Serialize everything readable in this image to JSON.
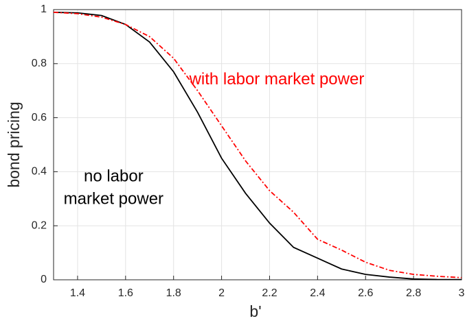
{
  "chart_data": {
    "type": "line",
    "xlabel": "b'",
    "ylabel": "bond pricing",
    "x": [
      1.3,
      1.4,
      1.5,
      1.6,
      1.7,
      1.8,
      1.9,
      2.0,
      2.1,
      2.2,
      2.3,
      2.4,
      2.5,
      2.6,
      2.7,
      2.8,
      2.9,
      3.0
    ],
    "series": [
      {
        "color": "#000000",
        "dash": "solid",
        "values": [
          0.99,
          0.988,
          0.978,
          0.945,
          0.88,
          0.77,
          0.62,
          0.45,
          0.32,
          0.21,
          0.12,
          0.08,
          0.04,
          0.02,
          0.01,
          0.003,
          0.001,
          0.001
        ]
      },
      {
        "color": "#ff0000",
        "dash": "dashdot",
        "values": [
          0.99,
          0.985,
          0.972,
          0.945,
          0.9,
          0.82,
          0.7,
          0.57,
          0.44,
          0.33,
          0.25,
          0.15,
          0.11,
          0.065,
          0.035,
          0.02,
          0.013,
          0.008
        ]
      }
    ],
    "annotations": [
      {
        "lines": [
          "with labor market power"
        ],
        "color": "#ff0000",
        "x": 2.23,
        "y": 0.74
      },
      {
        "lines": [
          "no labor",
          "market power"
        ],
        "color": "#000000",
        "x": 1.55,
        "y": 0.38
      }
    ],
    "xlim": [
      1.3,
      3
    ],
    "ylim": [
      0,
      1
    ],
    "xticks": [
      1.4,
      1.6,
      1.8,
      2,
      2.2,
      2.4,
      2.6,
      2.8,
      3
    ],
    "yticks": [
      0,
      0.2,
      0.4,
      0.6,
      0.8,
      1
    ],
    "grid": true
  }
}
